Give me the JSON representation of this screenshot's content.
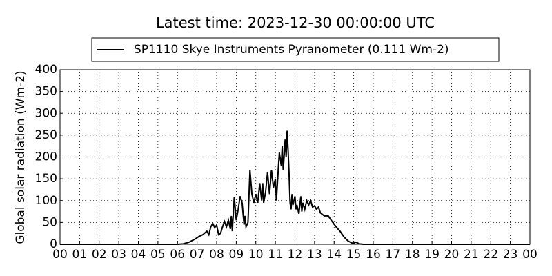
{
  "chart_data": {
    "type": "line",
    "title": "Latest time: 2023-12-30 00:00:00 UTC",
    "y_label": "Global solar radiation (Wm-2)",
    "xlim": [
      0,
      24
    ],
    "xticks": [
      {
        "value": 0,
        "label": "00"
      },
      {
        "value": 1,
        "label": "01"
      },
      {
        "value": 2,
        "label": "02"
      },
      {
        "value": 3,
        "label": "03"
      },
      {
        "value": 4,
        "label": "04"
      },
      {
        "value": 5,
        "label": "05"
      },
      {
        "value": 6,
        "label": "06"
      },
      {
        "value": 7,
        "label": "07"
      },
      {
        "value": 8,
        "label": "08"
      },
      {
        "value": 9,
        "label": "09"
      },
      {
        "value": 10,
        "label": "10"
      },
      {
        "value": 11,
        "label": "11"
      },
      {
        "value": 12,
        "label": "12"
      },
      {
        "value": 13,
        "label": "13"
      },
      {
        "value": 14,
        "label": "14"
      },
      {
        "value": 15,
        "label": "15"
      },
      {
        "value": 16,
        "label": "16"
      },
      {
        "value": 17,
        "label": "17"
      },
      {
        "value": 18,
        "label": "18"
      },
      {
        "value": 19,
        "label": "19"
      },
      {
        "value": 20,
        "label": "20"
      },
      {
        "value": 21,
        "label": "21"
      },
      {
        "value": 22,
        "label": "22"
      },
      {
        "value": 23,
        "label": "23"
      },
      {
        "value": 24,
        "label": "00"
      }
    ],
    "ylim": [
      0,
      400
    ],
    "yticks": [
      0,
      50,
      100,
      150,
      200,
      250,
      300,
      350,
      400
    ],
    "grid": true,
    "legend": "top",
    "x": [
      0,
      6.0,
      6.3,
      6.6,
      6.9,
      7.1,
      7.3,
      7.5,
      7.6,
      7.7,
      7.8,
      7.9,
      8.0,
      8.1,
      8.2,
      8.3,
      8.4,
      8.5,
      8.6,
      8.7,
      8.75,
      8.8,
      8.9,
      9.0,
      9.1,
      9.2,
      9.3,
      9.4,
      9.45,
      9.5,
      9.6,
      9.7,
      9.8,
      9.9,
      10.0,
      10.1,
      10.2,
      10.3,
      10.35,
      10.4,
      10.5,
      10.6,
      10.7,
      10.8,
      10.9,
      11.0,
      11.05,
      11.2,
      11.3,
      11.35,
      11.4,
      11.5,
      11.55,
      11.6,
      11.65,
      11.7,
      11.75,
      11.8,
      11.85,
      11.9,
      12.0,
      12.05,
      12.1,
      12.2,
      12.3,
      12.35,
      12.4,
      12.5,
      12.6,
      12.7,
      12.8,
      12.9,
      13.0,
      13.1,
      13.2,
      13.3,
      13.5,
      13.7,
      13.9,
      14.1,
      14.3,
      14.5,
      14.7,
      14.9,
      15.0,
      15.1,
      15.3,
      15.5,
      24
    ],
    "series": [
      {
        "name": "SP1110 Skye Instruments Pyranometer (0.111 Wm-2)",
        "color": "#000000",
        "values": [
          0,
          0,
          1,
          5,
          12,
          18,
          22,
          30,
          22,
          40,
          48,
          38,
          44,
          22,
          25,
          40,
          52,
          40,
          55,
          35,
          65,
          30,
          108,
          55,
          80,
          110,
          95,
          45,
          65,
          40,
          50,
          170,
          115,
          95,
          115,
          95,
          140,
          100,
          140,
          95,
          120,
          165,
          115,
          170,
          130,
          150,
          100,
          210,
          180,
          225,
          170,
          240,
          200,
          260,
          215,
          160,
          95,
          80,
          115,
          90,
          110,
          80,
          90,
          70,
          110,
          75,
          95,
          80,
          100,
          90,
          100,
          85,
          88,
          80,
          85,
          72,
          65,
          65,
          52,
          40,
          30,
          17,
          8,
          3,
          2,
          5,
          1,
          0,
          0
        ]
      }
    ]
  }
}
